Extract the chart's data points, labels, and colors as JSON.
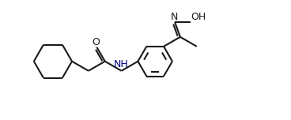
{
  "bg_color": "#ffffff",
  "line_color": "#1a1a1a",
  "nh_color": "#00008B",
  "lw": 1.5,
  "figsize": [
    3.68,
    1.52
  ],
  "dpi": 100,
  "xlim": [
    -0.5,
    10.5
  ],
  "ylim": [
    0.0,
    4.5
  ]
}
